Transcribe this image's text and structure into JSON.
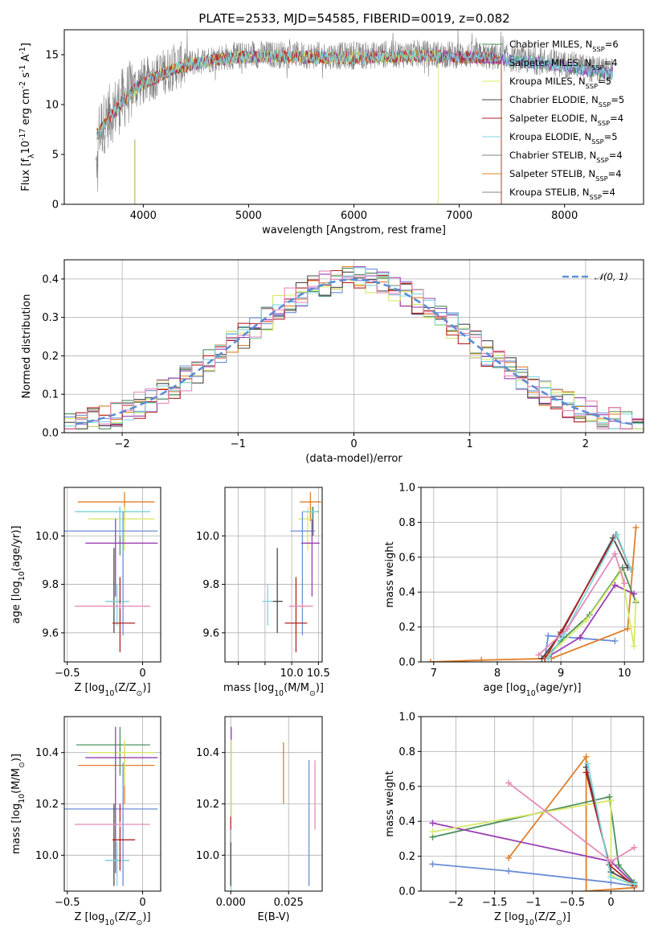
{
  "figure": {
    "title": "PLATE=2533, MJD=54585, FIBERID=0019, z=0.082",
    "palette": [
      "#6b8ed6",
      "#e07f2a",
      "#4c8f5d",
      "#9b3fb5",
      "#d9e86a",
      "#4a4a4a",
      "#b22222",
      "#7fd6df",
      "#e68bb8"
    ],
    "ssp_colors": [
      "#4c8f5d",
      "#9b3fb5",
      "#d9e86a",
      "#4a4a4a",
      "#b22222",
      "#7fd6df",
      "#808080",
      "#e07f2a"
    ]
  },
  "chart_data": [
    {
      "id": "spectrum",
      "type": "line",
      "xlabel": "wavelength [Angstrom, rest frame]",
      "ylabel": "Flux [f$_\\lambda$10$^{-17}$ erg cm$^{-2}$ s$^{-1}$ A$^{-1}$]",
      "xlim": [
        3250,
        8750
      ],
      "ylim": [
        0,
        17.5
      ],
      "xticks": [
        4000,
        5000,
        6000,
        7000,
        8000
      ],
      "yticks": [
        0,
        5,
        10,
        15
      ],
      "legend_location": "right",
      "legend": [
        {
          "prefix": "Chabrier MILES, N",
          "sub": "SSP",
          "suffix": "=6"
        },
        {
          "prefix": "Salpeter MILES, N",
          "sub": "SSP",
          "suffix": "=4"
        },
        {
          "prefix": "Kroupa MILES, N",
          "sub": "SSP",
          "suffix": "=5"
        },
        {
          "prefix": "Chabrier ELODIE, N",
          "sub": "SSP",
          "suffix": "=5"
        },
        {
          "prefix": "Salpeter ELODIE, N",
          "sub": "SSP",
          "suffix": "=4"
        },
        {
          "prefix": "Kroupa ELODIE, N",
          "sub": "SSP",
          "suffix": "=5"
        },
        {
          "prefix": "Chabrier STELIB, N",
          "sub": "SSP",
          "suffix": "=4"
        },
        {
          "prefix": "Salpeter STELIB, N",
          "sub": "SSP",
          "suffix": "=4"
        },
        {
          "prefix": "Kroupa STELIB, N",
          "sub": "SSP",
          "suffix": "=4"
        }
      ],
      "continuum": {
        "x": [
          3550,
          3650,
          3800,
          3950,
          4100,
          4300,
          4500,
          4700,
          4900,
          5100,
          5400,
          5700,
          6000,
          6300,
          6600,
          6900,
          7200,
          7500,
          7800,
          8100,
          8400
        ],
        "y": [
          7.0,
          8.5,
          10.5,
          12.0,
          12.8,
          13.8,
          14.3,
          14.7,
          14.9,
          15.0,
          15.0,
          14.9,
          14.9,
          15.0,
          15.1,
          15.0,
          14.9,
          14.6,
          14.3,
          13.9,
          13.3
        ]
      },
      "model_cutoffs": {
        "MILES": 7400,
        "ELODIE": 6800,
        "STELIB": 3920
      }
    },
    {
      "id": "residuals",
      "type": "histogram",
      "xlabel": "(data-model)/error",
      "ylabel": "Normed distribution",
      "xlim": [
        -2.5,
        2.5
      ],
      "ylim": [
        0,
        0.45
      ],
      "xticks": [
        -2,
        -1,
        0,
        1,
        2
      ],
      "yticks": [
        0.0,
        0.1,
        0.2,
        0.3,
        0.4
      ],
      "bin_width": 0.1,
      "reference_label": "$\\mathcal{N}(0,1)$",
      "legend_location": "top-right"
    },
    {
      "id": "age_vs_Z",
      "type": "errorbar",
      "xlabel": "Z [log$_{10}$(Z/Z$_\\odot$)]",
      "ylabel": "age  [log$_{10}$(age/yr)]",
      "xlim": [
        -0.52,
        0.12
      ],
      "ylim": [
        9.48,
        10.2
      ],
      "xticks": [
        -0.5,
        0.0
      ],
      "yticks": [
        9.6,
        9.8,
        10.0
      ],
      "points": [
        {
          "x": -0.12,
          "xerr": [
            0.31,
            0.2
          ],
          "y": 10.14,
          "yerr": [
            0.08,
            0.04
          ],
          "c": 1
        },
        {
          "x": -0.15,
          "xerr": [
            0.29,
            0.2
          ],
          "y": 10.1,
          "yerr": [
            0.18,
            0.02
          ],
          "c": 2
        },
        {
          "x": -0.12,
          "xerr": [
            0.24,
            0.2
          ],
          "y": 10.07,
          "yerr": [
            0.13,
            0.05
          ],
          "c": 4
        },
        {
          "x": -0.15,
          "xerr": [
            0.3,
            0.2
          ],
          "y": 10.1,
          "yerr": [
            0.1,
            0.02
          ],
          "c": 7
        },
        {
          "x": -0.13,
          "xerr": [
            0.4,
            0.23
          ],
          "y": 10.02,
          "yerr": [
            0.43,
            0.08
          ],
          "c": 0
        },
        {
          "x": -0.18,
          "xerr": [
            0.2,
            0.28
          ],
          "y": 9.97,
          "yerr": [
            0.22,
            0.1
          ],
          "c": 3
        },
        {
          "x": -0.19,
          "xerr": [
            0.05,
            0.1
          ],
          "y": 9.73,
          "yerr": [
            0.13,
            0.22
          ],
          "c": 5
        },
        {
          "x": -0.17,
          "xerr": [
            0.08,
            0.08
          ],
          "y": 9.73,
          "yerr": [
            0.1,
            0.07
          ],
          "c": 7
        },
        {
          "x": -0.15,
          "xerr": [
            0.05,
            0.1
          ],
          "y": 9.64,
          "yerr": [
            0.12,
            0.19
          ],
          "c": 6
        },
        {
          "x": -0.15,
          "xerr": [
            0.3,
            0.2
          ],
          "y": 9.71,
          "yerr": [
            0.01,
            0.01
          ],
          "c": 8
        }
      ]
    },
    {
      "id": "age_vs_mass",
      "type": "errorbar",
      "xlabel": "mass [log$_{10}$(M/M$_\\odot$)]",
      "ylabel": "",
      "xlim": [
        8.75,
        10.57
      ],
      "ylim": [
        9.48,
        10.2
      ],
      "xticks": [
        9.0,
        9.5,
        10.0,
        10.5
      ],
      "xticklabels": [
        "",
        "",
        "10.0",
        "10.5"
      ],
      "yticks": [
        9.6,
        9.8,
        10.0
      ],
      "points": [
        {
          "x": 10.35,
          "xerr": [
            0.2,
            0.2
          ],
          "y": 10.14,
          "yerr": [
            0.08,
            0.04
          ],
          "c": 1
        },
        {
          "x": 10.4,
          "xerr": [
            0.18,
            0.1
          ],
          "y": 10.1,
          "yerr": [
            0.1,
            0.02
          ],
          "c": 2
        },
        {
          "x": 10.3,
          "xerr": [
            0.18,
            0.1
          ],
          "y": 10.07,
          "yerr": [
            0.13,
            0.05
          ],
          "c": 4
        },
        {
          "x": 10.38,
          "xerr": [
            0.18,
            0.1
          ],
          "y": 10.1,
          "yerr": [
            0.1,
            0.02
          ],
          "c": 7
        },
        {
          "x": 10.2,
          "xerr": [
            0.22,
            0.24
          ],
          "y": 10.02,
          "yerr": [
            0.43,
            0.08
          ],
          "c": 0
        },
        {
          "x": 10.38,
          "xerr": [
            0.2,
            0.14
          ],
          "y": 9.97,
          "yerr": [
            0.22,
            0.1
          ],
          "c": 3
        },
        {
          "x": 9.73,
          "xerr": [
            0.1,
            0.1
          ],
          "y": 9.73,
          "yerr": [
            0.13,
            0.22
          ],
          "c": 5
        },
        {
          "x": 9.55,
          "xerr": [
            0.1,
            0.1
          ],
          "y": 9.73,
          "yerr": [
            0.1,
            0.07
          ],
          "c": 7
        },
        {
          "x": 10.08,
          "xerr": [
            0.21,
            0.21
          ],
          "y": 9.64,
          "yerr": [
            0.12,
            0.19
          ],
          "c": 6
        },
        {
          "x": 10.2,
          "xerr": [
            0.25,
            0.2
          ],
          "y": 9.71,
          "yerr": [
            0.01,
            0.01
          ],
          "c": 8
        }
      ]
    },
    {
      "id": "weight_vs_age",
      "type": "line",
      "xlabel": "age  [log$_{10}$(age/yr)]",
      "ylabel": "mass weight",
      "xlim": [
        6.8,
        10.3
      ],
      "ylim": [
        0,
        1.0
      ],
      "xticks": [
        7,
        8,
        9,
        10
      ],
      "yticks": [
        0.0,
        0.2,
        0.4,
        0.6,
        0.8,
        1.0
      ],
      "series": [
        {
          "c": 0,
          "x": [
            8.75,
            8.8,
            9.85
          ],
          "y": [
            0.02,
            0.15,
            0.12
          ]
        },
        {
          "c": 1,
          "x": [
            6.95,
            7.75,
            8.85,
            10.05,
            10.18
          ],
          "y": [
            0.0,
            0.01,
            0.02,
            0.19,
            0.77
          ]
        },
        {
          "c": 2,
          "x": [
            8.75,
            9.0,
            9.45,
            9.97,
            10.18
          ],
          "y": [
            0.02,
            0.12,
            0.27,
            0.54,
            0.34
          ]
        },
        {
          "c": 3,
          "x": [
            8.8,
            9.3,
            9.85,
            10.15
          ],
          "y": [
            0.03,
            0.14,
            0.44,
            0.39
          ]
        },
        {
          "c": 4,
          "x": [
            8.75,
            9.4,
            9.95,
            10.15,
            10.18
          ],
          "y": [
            0.02,
            0.24,
            0.52,
            0.09,
            0.35
          ]
        },
        {
          "c": 5,
          "x": [
            8.7,
            9.0,
            9.82,
            10.05
          ],
          "y": [
            0.02,
            0.16,
            0.71,
            0.54
          ]
        },
        {
          "c": 6,
          "x": [
            8.75,
            9.0,
            9.87,
            10.1
          ],
          "y": [
            0.02,
            0.17,
            0.73,
            0.53
          ]
        },
        {
          "c": 7,
          "x": [
            8.8,
            9.05,
            9.88,
            10.1
          ],
          "y": [
            0.02,
            0.16,
            0.73,
            0.53
          ]
        },
        {
          "c": 8,
          "x": [
            8.65,
            9.1,
            9.85,
            10.0
          ],
          "y": [
            0.04,
            0.19,
            0.62,
            0.45
          ]
        }
      ]
    },
    {
      "id": "mass_vs_Z",
      "type": "errorbar",
      "xlabel": "Z [log$_{10}$(Z/Z$_\\odot$)]",
      "ylabel": "mass [log$_{10}$(M/M$_\\odot$)]",
      "xlim": [
        -0.52,
        0.12
      ],
      "ylim": [
        9.86,
        10.54
      ],
      "xticks": [
        -0.5,
        0.0
      ],
      "yticks": [
        10.0,
        10.2,
        10.4
      ],
      "points": [
        {
          "x": -0.12,
          "xerr": [
            0.31,
            0.2
          ],
          "y": 10.35,
          "yerr": [
            0.15,
            0.09
          ],
          "c": 1
        },
        {
          "x": -0.15,
          "xerr": [
            0.29,
            0.2
          ],
          "y": 10.43,
          "yerr": [
            0.12,
            0.07
          ],
          "c": 2
        },
        {
          "x": -0.12,
          "xerr": [
            0.24,
            0.2
          ],
          "y": 10.4,
          "yerr": [
            0.13,
            0.05
          ],
          "c": 4
        },
        {
          "x": -0.13,
          "xerr": [
            0.4,
            0.23
          ],
          "y": 10.18,
          "yerr": [
            0.3,
            0.18
          ],
          "c": 0
        },
        {
          "x": -0.18,
          "xerr": [
            0.2,
            0.28
          ],
          "y": 10.38,
          "yerr": [
            0.45,
            0.12
          ],
          "c": 3
        },
        {
          "x": -0.19,
          "xerr": [
            0.05,
            0.1
          ],
          "y": 9.98,
          "yerr": [
            0.1,
            0.22
          ],
          "c": 5
        },
        {
          "x": -0.17,
          "xerr": [
            0.08,
            0.08
          ],
          "y": 9.98,
          "yerr": [
            0.1,
            0.07
          ],
          "c": 7
        },
        {
          "x": -0.15,
          "xerr": [
            0.05,
            0.1
          ],
          "y": 10.06,
          "yerr": [
            0.12,
            0.14
          ],
          "c": 6
        },
        {
          "x": -0.15,
          "xerr": [
            0.3,
            0.2
          ],
          "y": 10.12,
          "yerr": [
            0.01,
            0.01
          ],
          "c": 8
        }
      ]
    },
    {
      "id": "mass_vs_EBV",
      "type": "errorbar",
      "xlabel": "E(B-V)",
      "ylabel": "",
      "xlim": [
        -0.0025,
        0.0395
      ],
      "ylim": [
        9.86,
        10.54
      ],
      "xticks": [
        0.0,
        0.025
      ],
      "xticklabels": [
        "0.000",
        "0.025"
      ],
      "yticks": [
        10.0,
        10.2,
        10.4
      ],
      "points": [
        {
          "x": 0.0228,
          "y": 10.35,
          "yerr": [
            0.15,
            0.09
          ],
          "c": 1
        },
        {
          "x": 0.0338,
          "y": 10.18,
          "yerr": [
            0.3,
            0.19
          ],
          "c": 0
        },
        {
          "x": 0.0364,
          "y": 10.23,
          "yerr": [
            0.13,
            0.14
          ],
          "c": 8
        },
        {
          "x": 0.0002,
          "y": 10.38,
          "yerr": [
            0.23,
            0.12
          ],
          "c": 3
        },
        {
          "x": 0.0002,
          "y": 10.3,
          "yerr": [
            0.15,
            0.15
          ],
          "c": 4
        },
        {
          "x": 0.0,
          "y": 10.1,
          "yerr": [
            0.1,
            0.05
          ],
          "c": 6
        },
        {
          "x": 0.0001,
          "y": 10.0,
          "yerr": [
            0.15,
            0.1
          ],
          "c": 7
        },
        {
          "x": 0.0,
          "y": 9.95,
          "yerr": [
            0.07,
            0.1
          ],
          "c": 5
        }
      ]
    },
    {
      "id": "weight_vs_Z",
      "type": "line",
      "xlabel": "Z [log$_{10}$(Z/Z$_\\odot$)]",
      "ylabel": "mass weight",
      "xlim": [
        -2.45,
        0.42
      ],
      "ylim": [
        0,
        1.0
      ],
      "xticks": [
        -2.0,
        -1.5,
        -1.0,
        -0.5,
        0.0
      ],
      "yticks": [
        0.0,
        0.2,
        0.4,
        0.6,
        0.8,
        1.0
      ],
      "series": [
        {
          "c": 0,
          "x": [
            -2.3,
            -1.32,
            0.0,
            0.3
          ],
          "y": [
            0.155,
            0.115,
            0.05,
            0.03
          ]
        },
        {
          "c": 1,
          "x": [
            -1.32,
            -0.32,
            -0.32,
            0.3
          ],
          "y": [
            0.19,
            0.77,
            0.0,
            0.02
          ]
        },
        {
          "c": 2,
          "x": [
            -2.3,
            -0.02,
            0.1,
            0.3
          ],
          "y": [
            0.31,
            0.54,
            0.15,
            0.05
          ]
        },
        {
          "c": 3,
          "x": [
            -2.3,
            0.0,
            0.3
          ],
          "y": [
            0.39,
            0.17,
            0.04
          ]
        },
        {
          "c": 4,
          "x": [
            -2.3,
            0.0,
            0.0,
            0.3
          ],
          "y": [
            0.34,
            0.52,
            0.09,
            0.03
          ]
        },
        {
          "c": 5,
          "x": [
            -0.32,
            0.0,
            0.3
          ],
          "y": [
            0.71,
            0.11,
            0.04
          ]
        },
        {
          "c": 6,
          "x": [
            -0.32,
            -0.02,
            0.3
          ],
          "y": [
            0.68,
            0.15,
            0.03
          ]
        },
        {
          "c": 7,
          "x": [
            -0.3,
            0.0,
            0.3
          ],
          "y": [
            0.73,
            0.08,
            0.04
          ]
        },
        {
          "c": 8,
          "x": [
            -1.32,
            0.0,
            0.3
          ],
          "y": [
            0.62,
            0.17,
            0.25
          ]
        }
      ]
    }
  ]
}
